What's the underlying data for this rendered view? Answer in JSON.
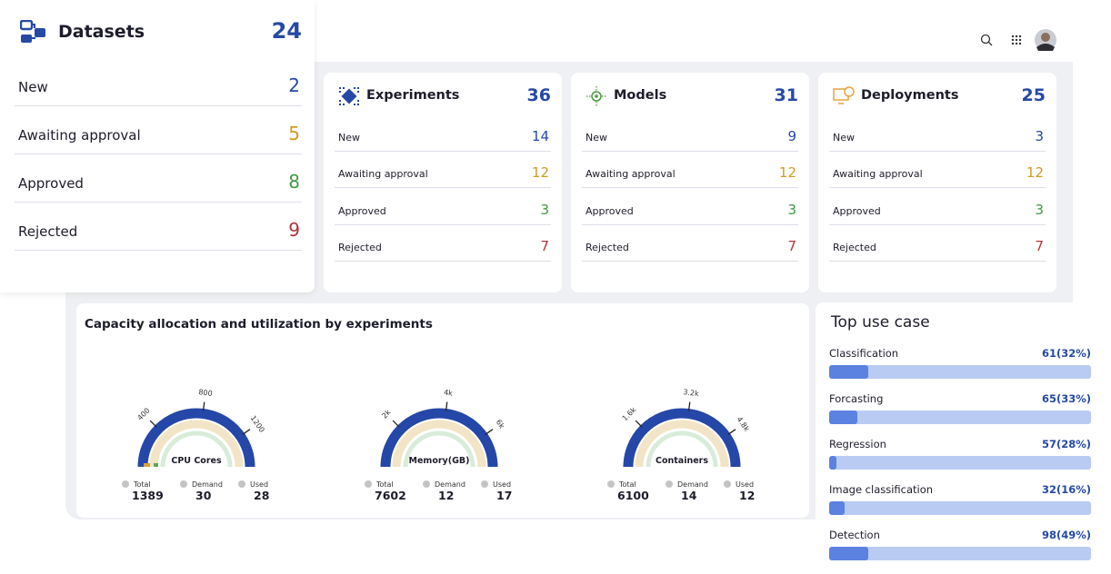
{
  "datasets": {
    "title": "Datasets",
    "total": 24,
    "rows": [
      {
        "label": "New",
        "value": 2
      },
      {
        "label": "Awaiting approval",
        "value": 5
      },
      {
        "label": "Approved",
        "value": 8
      },
      {
        "label": "Rejected",
        "value": 9
      }
    ]
  },
  "cards": [
    {
      "title": "Experiments",
      "total": 36,
      "rows": [
        {
          "label": "New",
          "value": 14
        },
        {
          "label": "Awaiting approval",
          "value": 12
        },
        {
          "label": "Approved",
          "value": 3
        },
        {
          "label": "Rejected",
          "value": 7
        }
      ]
    },
    {
      "title": "Models",
      "total": 31,
      "rows": [
        {
          "label": "New",
          "value": 9
        },
        {
          "label": "Awaiting approval",
          "value": 12
        },
        {
          "label": "Approved",
          "value": 3
        },
        {
          "label": "Rejected",
          "value": 7
        }
      ]
    },
    {
      "title": "Deployments",
      "total": 25,
      "rows": [
        {
          "label": "New",
          "value": 3
        },
        {
          "label": "Awaiting approval",
          "value": 12
        },
        {
          "label": "Approved",
          "value": 3
        },
        {
          "label": "Rejected",
          "value": 7
        }
      ]
    }
  ],
  "capacity": {
    "title": "Capacity allocation and utilization by experiments",
    "gauges": [
      {
        "name": "CPU Cores",
        "ticks": [
          "400",
          "800",
          "1200"
        ],
        "stats": [
          {
            "label": "Total",
            "value": 1389
          },
          {
            "label": "Demand",
            "value": 30
          },
          {
            "label": "Used",
            "value": 28
          }
        ]
      },
      {
        "name": "Memory(GB)",
        "ticks": [
          "2k",
          "4k",
          "6k"
        ],
        "stats": [
          {
            "label": "Total",
            "value": 7602
          },
          {
            "label": "Demand",
            "value": 12
          },
          {
            "label": "Used",
            "value": 17
          }
        ]
      },
      {
        "name": "Containers",
        "ticks": [
          "1.6k",
          "3.2k",
          "4.8k"
        ],
        "stats": [
          {
            "label": "Total",
            "value": 6100
          },
          {
            "label": "Demand",
            "value": 14
          },
          {
            "label": "Used",
            "value": 12
          }
        ]
      }
    ]
  },
  "top_use_case": {
    "title": "Top use case",
    "items": [
      {
        "label": "Classification",
        "value": "61(32%)"
      },
      {
        "label": "Forcasting",
        "value": "65(33%)"
      },
      {
        "label": "Regression",
        "value": "57(28%)"
      },
      {
        "label": "Image classification",
        "value": "32(16%)"
      },
      {
        "label": "Detection",
        "value": "98(49%)"
      }
    ]
  }
}
